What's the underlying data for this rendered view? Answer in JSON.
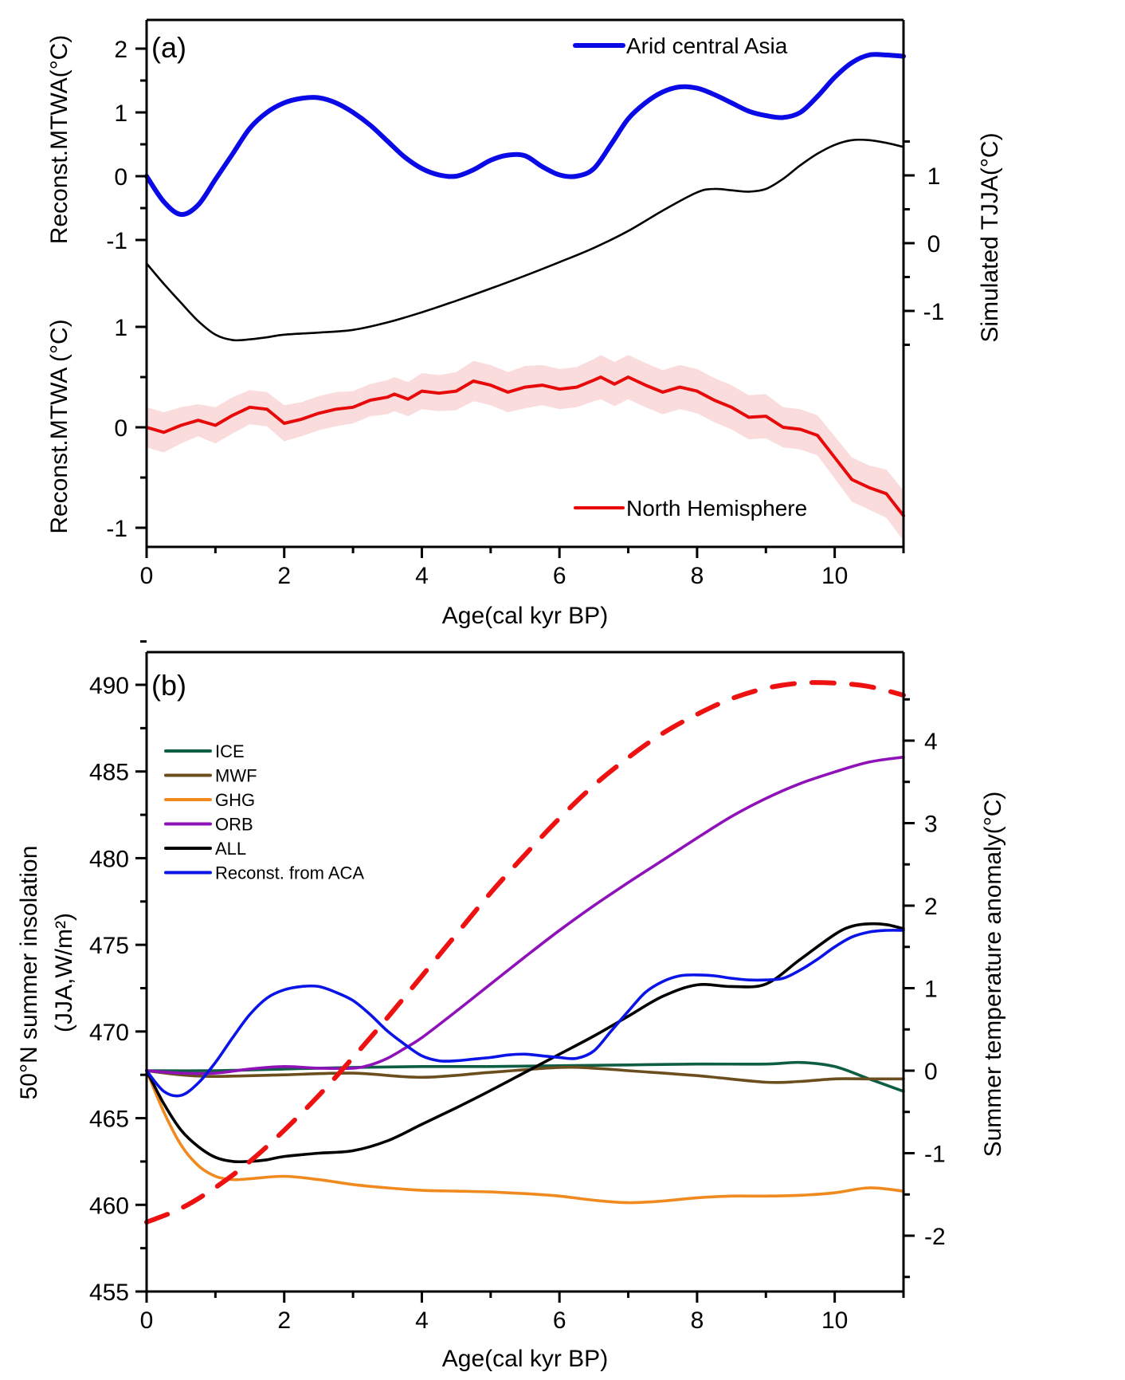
{
  "chart_data": [
    {
      "panel": "a",
      "type": "line",
      "panel_label": "(a)",
      "xlabel": "Age(cal kyr BP)",
      "xlim": [
        0,
        11
      ],
      "x_ticks": [
        0,
        2,
        4,
        6,
        8,
        10
      ],
      "axes": {
        "left_top": {
          "label": "Reconst.MTWA(°C)",
          "ticks": [
            2,
            1,
            0,
            -1
          ],
          "range": [
            -1.3,
            2.3
          ]
        },
        "left_bottom": {
          "label": "Reconst.MTWA (°C)",
          "ticks": [
            1,
            0,
            -1
          ],
          "range": [
            -1.2,
            1.2
          ]
        },
        "right": {
          "label": "Simulated TJJA(°C)",
          "ticks": [
            1,
            0,
            -1
          ],
          "range": [
            -1.5,
            1.5
          ]
        }
      },
      "series": [
        {
          "name": "Arid central Asia",
          "axis": "left_top",
          "color": "#0a0ae6",
          "legend": true,
          "x": [
            0,
            0.25,
            0.5,
            0.75,
            1.0,
            1.25,
            1.5,
            1.75,
            2.0,
            2.25,
            2.5,
            2.75,
            3.0,
            3.25,
            3.5,
            3.75,
            4.0,
            4.25,
            4.5,
            4.75,
            5.0,
            5.25,
            5.5,
            5.75,
            6.0,
            6.25,
            6.5,
            6.75,
            7.0,
            7.25,
            7.5,
            7.75,
            8.0,
            8.25,
            8.5,
            8.75,
            9.0,
            9.25,
            9.5,
            9.75,
            10.0,
            10.25,
            10.5,
            10.75,
            11.0
          ],
          "y": [
            0.0,
            -0.4,
            -0.6,
            -0.45,
            -0.05,
            0.35,
            0.75,
            1.0,
            1.15,
            1.22,
            1.23,
            1.15,
            1.0,
            0.8,
            0.55,
            0.3,
            0.12,
            0.02,
            0.0,
            0.1,
            0.25,
            0.33,
            0.32,
            0.15,
            0.02,
            0.0,
            0.12,
            0.5,
            0.9,
            1.15,
            1.32,
            1.4,
            1.38,
            1.28,
            1.15,
            1.02,
            0.95,
            0.92,
            1.0,
            1.25,
            1.55,
            1.78,
            1.9,
            1.9,
            1.88
          ]
        },
        {
          "name": "Simulated TJJA",
          "axis": "right",
          "color": "#000000",
          "legend": false,
          "x": [
            0,
            0.25,
            0.5,
            0.75,
            1.0,
            1.25,
            1.5,
            1.75,
            2.0,
            2.5,
            3.0,
            3.5,
            4.0,
            4.5,
            5.0,
            5.5,
            6.0,
            6.5,
            7.0,
            7.5,
            8.0,
            8.25,
            8.5,
            8.75,
            9.0,
            9.25,
            9.5,
            9.75,
            10.0,
            10.25,
            10.5,
            10.75,
            11.0
          ],
          "y": [
            -0.3,
            -0.6,
            -0.88,
            -1.15,
            -1.35,
            -1.43,
            -1.42,
            -1.39,
            -1.35,
            -1.32,
            -1.28,
            -1.17,
            -1.02,
            -0.85,
            -0.67,
            -0.48,
            -0.28,
            -0.07,
            0.18,
            0.48,
            0.75,
            0.8,
            0.78,
            0.76,
            0.8,
            0.95,
            1.15,
            1.32,
            1.45,
            1.52,
            1.52,
            1.48,
            1.42
          ]
        },
        {
          "name": "North Hemisphere",
          "axis": "left_bottom",
          "color": "#e60a0a",
          "legend": true,
          "band_color": "#fbdcdc",
          "x": [
            0,
            0.25,
            0.5,
            0.75,
            1.0,
            1.25,
            1.5,
            1.75,
            2.0,
            2.25,
            2.5,
            2.75,
            3.0,
            3.25,
            3.5,
            3.6,
            3.8,
            4.0,
            4.25,
            4.5,
            4.75,
            5.0,
            5.25,
            5.5,
            5.75,
            6.0,
            6.25,
            6.5,
            6.6,
            6.8,
            7.0,
            7.25,
            7.5,
            7.75,
            8.0,
            8.25,
            8.5,
            8.75,
            9.0,
            9.25,
            9.5,
            9.75,
            10.0,
            10.25,
            10.5,
            10.75,
            11.0
          ],
          "y": [
            0.0,
            -0.05,
            0.02,
            0.07,
            0.02,
            0.12,
            0.2,
            0.18,
            0.04,
            0.08,
            0.14,
            0.18,
            0.2,
            0.27,
            0.3,
            0.33,
            0.28,
            0.36,
            0.34,
            0.36,
            0.46,
            0.42,
            0.35,
            0.4,
            0.42,
            0.38,
            0.4,
            0.47,
            0.5,
            0.43,
            0.5,
            0.42,
            0.35,
            0.4,
            0.36,
            0.27,
            0.2,
            0.1,
            0.11,
            0.0,
            -0.02,
            -0.08,
            -0.3,
            -0.52,
            -0.6,
            -0.66,
            -0.88
          ],
          "band_half_width": [
            0.2,
            0.2,
            0.18,
            0.16,
            0.18,
            0.18,
            0.17,
            0.17,
            0.18,
            0.17,
            0.17,
            0.17,
            0.16,
            0.16,
            0.17,
            0.17,
            0.17,
            0.18,
            0.18,
            0.19,
            0.2,
            0.2,
            0.2,
            0.21,
            0.2,
            0.2,
            0.2,
            0.21,
            0.22,
            0.22,
            0.22,
            0.22,
            0.22,
            0.22,
            0.22,
            0.22,
            0.22,
            0.22,
            0.22,
            0.2,
            0.2,
            0.2,
            0.21,
            0.22,
            0.22,
            0.24,
            0.25
          ]
        }
      ]
    },
    {
      "panel": "b",
      "type": "line",
      "panel_label": "(b)",
      "xlabel": "Age(cal kyr BP)",
      "xlim": [
        0,
        11
      ],
      "x_ticks": [
        0,
        2,
        4,
        6,
        8,
        10
      ],
      "axes": {
        "left": {
          "label_line1": "50°N summer insolation",
          "label_line2": "(JJA,W/m²)",
          "ticks": [
            490,
            485,
            480,
            475,
            470,
            465,
            460,
            455
          ],
          "range": [
            455,
            492.5
          ]
        },
        "right": {
          "label": "Summer temperature anomaly(°C)",
          "ticks": [
            4,
            3,
            2,
            1,
            0,
            -1,
            -2
          ],
          "range": [
            -2.5,
            4.5
          ]
        }
      },
      "series": [
        {
          "name": "50°N summer insolation",
          "axis": "left",
          "color": "#ee1111",
          "dashed": true,
          "legend": false,
          "x": [
            0,
            0.5,
            1.0,
            1.5,
            2.0,
            2.5,
            3.0,
            3.5,
            4.0,
            4.5,
            5.0,
            5.5,
            6.0,
            6.5,
            7.0,
            7.5,
            8.0,
            8.5,
            9.0,
            9.5,
            10.0,
            10.5,
            11.0
          ],
          "y": [
            459.0,
            459.8,
            461.0,
            462.5,
            464.3,
            466.3,
            468.5,
            470.8,
            473.2,
            475.6,
            478.0,
            480.2,
            482.3,
            484.2,
            485.8,
            487.2,
            488.3,
            489.2,
            489.8,
            490.1,
            490.1,
            489.9,
            489.4
          ]
        },
        {
          "name": "ICE",
          "axis": "right",
          "color": "#0e5e45",
          "legend": true,
          "x": [
            0,
            1,
            2,
            3,
            4,
            5,
            6,
            7,
            8,
            9,
            9.5,
            10.0,
            10.5,
            11.0
          ],
          "y": [
            0.0,
            0.0,
            0.02,
            0.04,
            0.05,
            0.05,
            0.06,
            0.07,
            0.08,
            0.08,
            0.1,
            0.05,
            -0.1,
            -0.25
          ]
        },
        {
          "name": "MWF",
          "axis": "right",
          "color": "#6b4e1e",
          "legend": true,
          "x": [
            0,
            0.5,
            1,
            2,
            3,
            4,
            5,
            6,
            6.5,
            7,
            8,
            9,
            9.5,
            10,
            10.5,
            11.0
          ],
          "y": [
            0.0,
            -0.05,
            -0.07,
            -0.05,
            -0.03,
            -0.08,
            -0.02,
            0.04,
            0.03,
            0.0,
            -0.06,
            -0.14,
            -0.13,
            -0.1,
            -0.1,
            -0.1
          ]
        },
        {
          "name": "GHG",
          "axis": "right",
          "color": "#f08a1e",
          "legend": true,
          "x": [
            0,
            0.25,
            0.5,
            0.75,
            1.0,
            1.25,
            1.5,
            2.0,
            2.5,
            3.0,
            3.5,
            4.0,
            4.5,
            5.0,
            5.5,
            6.0,
            6.5,
            7.0,
            7.5,
            8.0,
            8.5,
            9.0,
            9.5,
            10.0,
            10.5,
            11.0
          ],
          "y": [
            0.0,
            -0.5,
            -0.9,
            -1.15,
            -1.28,
            -1.32,
            -1.31,
            -1.28,
            -1.32,
            -1.38,
            -1.42,
            -1.45,
            -1.46,
            -1.47,
            -1.49,
            -1.52,
            -1.57,
            -1.6,
            -1.58,
            -1.54,
            -1.52,
            -1.52,
            -1.51,
            -1.48,
            -1.42,
            -1.46
          ]
        },
        {
          "name": "ORB",
          "axis": "right",
          "color": "#8e12b8",
          "legend": true,
          "x": [
            0,
            0.5,
            1.0,
            1.5,
            2.0,
            2.5,
            3.0,
            3.25,
            3.5,
            3.75,
            4.0,
            4.5,
            5.0,
            5.5,
            6.0,
            6.5,
            7.0,
            7.5,
            8.0,
            8.5,
            9.0,
            9.5,
            10.0,
            10.5,
            11.0
          ],
          "y": [
            0.0,
            -0.03,
            -0.03,
            0.02,
            0.05,
            0.03,
            0.03,
            0.07,
            0.15,
            0.27,
            0.4,
            0.72,
            1.05,
            1.38,
            1.7,
            2.0,
            2.28,
            2.55,
            2.82,
            3.08,
            3.3,
            3.48,
            3.62,
            3.74,
            3.8
          ]
        },
        {
          "name": "ALL",
          "axis": "right",
          "color": "#000000",
          "legend": true,
          "x": [
            0,
            0.25,
            0.5,
            0.75,
            1.0,
            1.25,
            1.5,
            1.75,
            2.0,
            2.5,
            3.0,
            3.5,
            4.0,
            4.5,
            5.0,
            5.5,
            6.0,
            6.5,
            7.0,
            7.5,
            8.0,
            8.5,
            9.0,
            9.5,
            10.0,
            10.25,
            10.5,
            10.75,
            11.0
          ],
          "y": [
            0.0,
            -0.4,
            -0.72,
            -0.92,
            -1.05,
            -1.1,
            -1.1,
            -1.08,
            -1.04,
            -1.0,
            -0.97,
            -0.85,
            -0.65,
            -0.45,
            -0.24,
            -0.02,
            0.2,
            0.42,
            0.66,
            0.9,
            1.04,
            1.02,
            1.05,
            1.35,
            1.65,
            1.75,
            1.78,
            1.77,
            1.72
          ]
        },
        {
          "name": "Reconst. from ACA",
          "axis": "right",
          "color": "#0a14e6",
          "legend": true,
          "x": [
            0,
            0.25,
            0.5,
            0.75,
            1.0,
            1.25,
            1.5,
            1.75,
            2.0,
            2.25,
            2.5,
            2.75,
            3.0,
            3.25,
            3.5,
            3.75,
            4.0,
            4.25,
            4.5,
            4.75,
            5.0,
            5.25,
            5.5,
            5.75,
            6.0,
            6.25,
            6.5,
            6.75,
            7.0,
            7.25,
            7.5,
            7.75,
            8.0,
            8.25,
            8.5,
            8.75,
            9.0,
            9.25,
            9.5,
            9.75,
            10.0,
            10.25,
            10.5,
            10.75,
            11.0
          ],
          "y": [
            0.0,
            -0.25,
            -0.3,
            -0.15,
            0.1,
            0.4,
            0.68,
            0.88,
            0.98,
            1.02,
            1.02,
            0.95,
            0.85,
            0.68,
            0.48,
            0.32,
            0.18,
            0.12,
            0.12,
            0.14,
            0.16,
            0.19,
            0.2,
            0.18,
            0.16,
            0.15,
            0.24,
            0.48,
            0.72,
            0.95,
            1.08,
            1.15,
            1.16,
            1.15,
            1.12,
            1.1,
            1.1,
            1.12,
            1.22,
            1.35,
            1.5,
            1.62,
            1.68,
            1.7,
            1.7
          ]
        }
      ]
    }
  ]
}
